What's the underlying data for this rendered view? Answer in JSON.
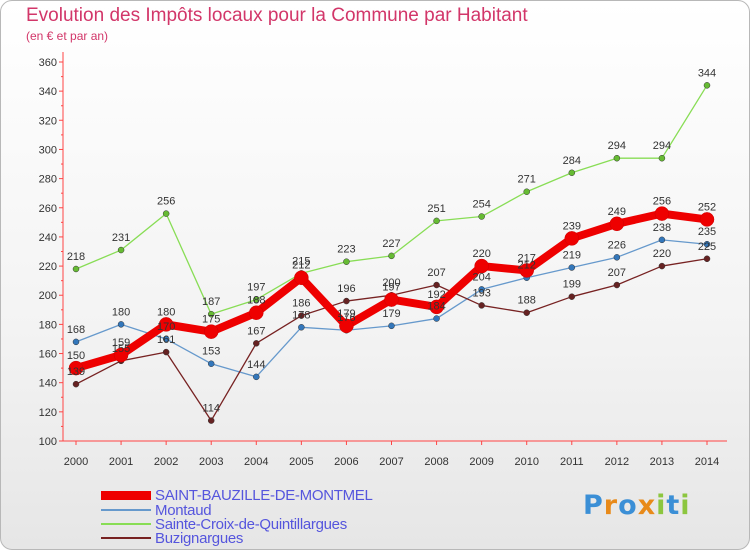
{
  "chart_data": {
    "type": "line",
    "title": "Evolution des Impôts locaux pour la Commune par Habitant",
    "subtitle": "(en € et par an)",
    "x": [
      2000,
      2001,
      2002,
      2003,
      2004,
      2005,
      2006,
      2007,
      2008,
      2009,
      2010,
      2011,
      2012,
      2013,
      2014
    ],
    "ylim": [
      100,
      360
    ],
    "yticks": [
      100,
      120,
      140,
      160,
      180,
      200,
      220,
      240,
      260,
      280,
      300,
      320,
      340,
      360
    ],
    "grid": false,
    "series": [
      {
        "name": "Sainte-Croix-de-Quintillargues",
        "color": "#88dd55",
        "point_color": "#66bb33",
        "values": [
          218,
          231,
          256,
          187,
          197,
          215,
          223,
          227,
          251,
          254,
          271,
          284,
          294,
          294,
          344
        ]
      },
      {
        "name": "Montaud",
        "color": "#6699cc",
        "point_color": "#3377bb",
        "values": [
          168,
          180,
          170,
          153,
          144,
          178,
          176,
          179,
          184,
          204,
          212,
          219,
          226,
          238,
          235
        ]
      },
      {
        "name": "Buzignargues",
        "color": "#772222",
        "point_color": "#662222",
        "values": [
          139,
          155,
          161,
          114,
          167,
          186,
          196,
          200,
          207,
          193,
          188,
          199,
          207,
          220,
          225
        ]
      },
      {
        "name": "SAINT-BAUZILLE-DE-MONTMEL",
        "color": "#ee0000",
        "point_color": "#ee0000",
        "values": [
          150,
          159,
          180,
          175,
          188,
          212,
          179,
          197,
          192,
          220,
          217,
          239,
          249,
          256,
          252
        ]
      }
    ],
    "data_labels": [
      {
        "series": "Sainte-Croix-de-Quintillargues",
        "labels": [
          "218",
          "231",
          "256",
          "187",
          "197",
          "215",
          "223",
          "227",
          "251",
          "254",
          "271",
          "284",
          "294",
          "294",
          "344"
        ]
      },
      {
        "series": "Montaud",
        "labels": [
          "168",
          "180",
          "170",
          "153",
          "144",
          "178",
          "176",
          "179",
          "184",
          "204",
          "212",
          "219",
          "226",
          "238",
          "235"
        ]
      },
      {
        "series": "Buzignargues",
        "labels": [
          "139",
          "155",
          "161",
          "114",
          "167",
          "186",
          "196",
          "200",
          "207",
          "193",
          "188",
          "199",
          "207",
          "220",
          "225"
        ]
      },
      {
        "series": "SAINT-BAUZILLE-DE-MONTMEL",
        "labels": [
          "150",
          "159",
          "180",
          "175",
          "188",
          "212",
          "179",
          "197",
          "192",
          "220",
          "217",
          "239",
          "249",
          "256",
          "252"
        ]
      }
    ],
    "legend": {
      "position": "bottom-left",
      "items": [
        {
          "label": "SAINT-BAUZILLE-DE-MONTMEL",
          "color": "#ee0000"
        },
        {
          "label": "Montaud",
          "color": "#6699cc"
        },
        {
          "label": "Sainte-Croix-de-Quintillargues",
          "color": "#88dd55"
        },
        {
          "label": "Buzignargues",
          "color": "#772222"
        }
      ]
    }
  },
  "logo": {
    "letters": [
      "P",
      "r",
      "o",
      "x",
      "i",
      "t",
      "i"
    ],
    "colors": [
      "#3b8fd6",
      "#e88a1a",
      "#3b8fd6",
      "#e88a1a",
      "#8cc63f",
      "#3b8fd6",
      "#8cc63f"
    ]
  }
}
